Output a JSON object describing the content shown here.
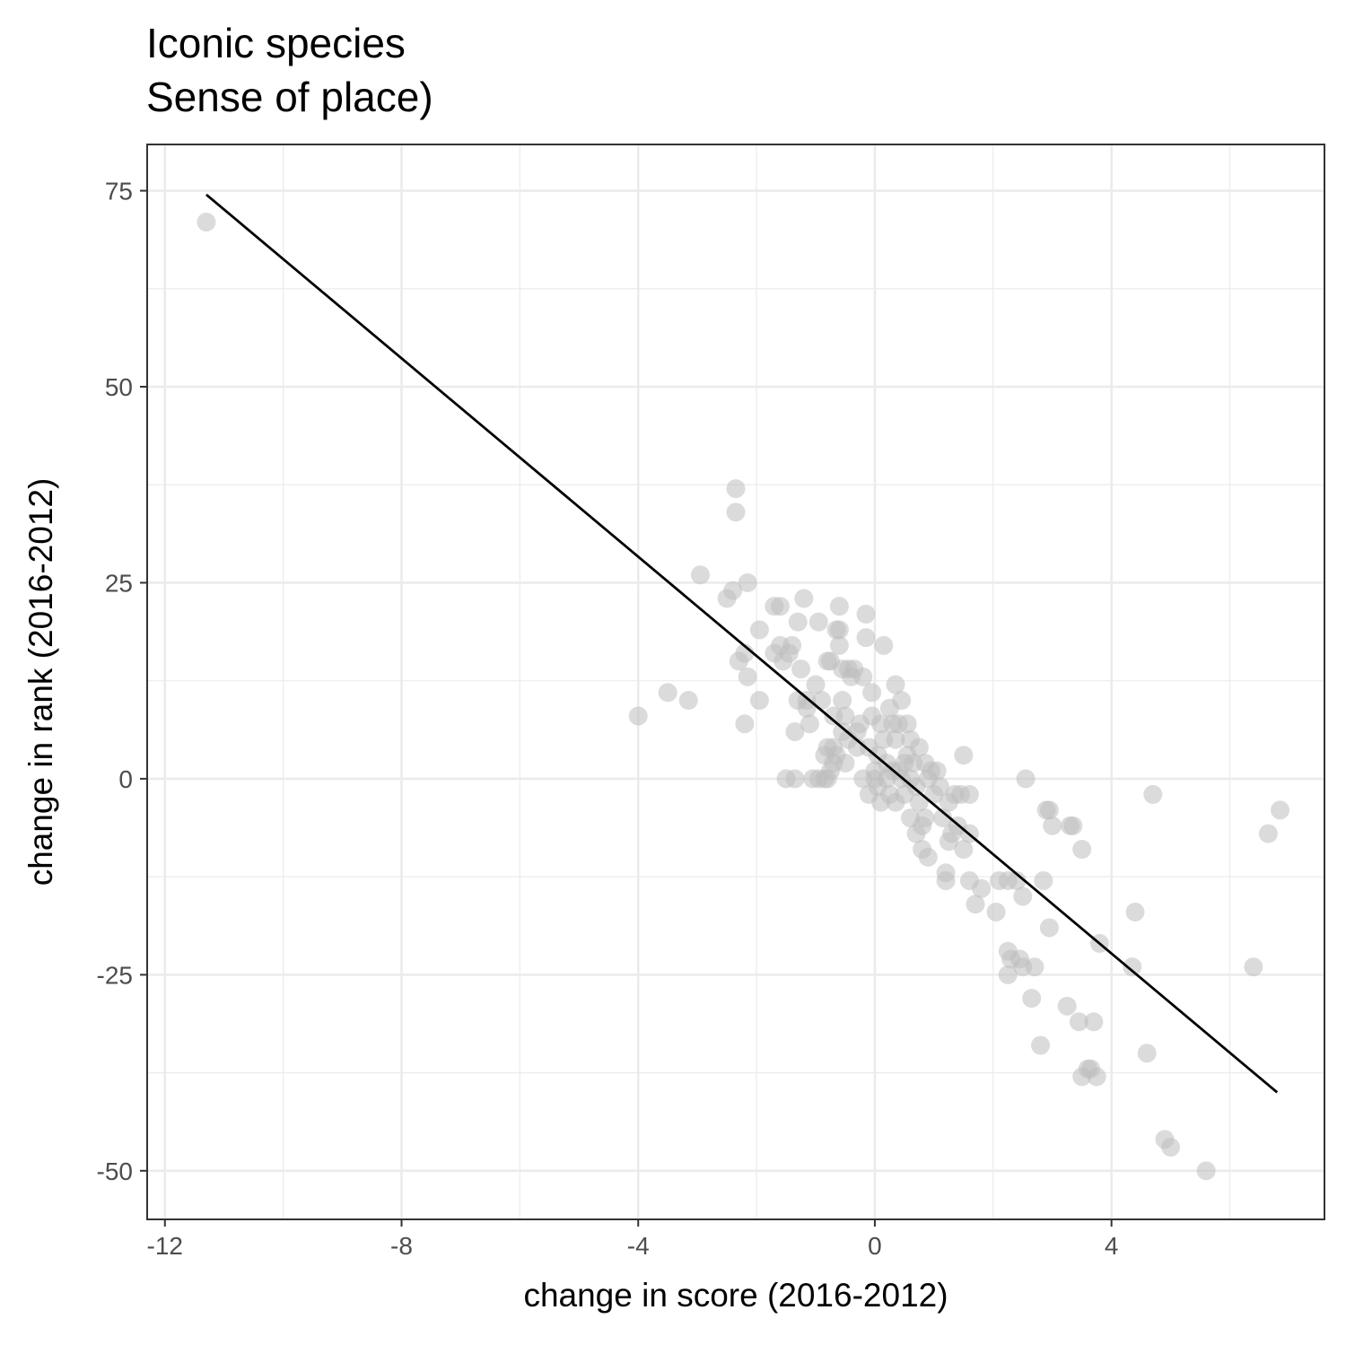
{
  "chart_data": {
    "type": "scatter",
    "title_lines": [
      "Iconic species",
      "Sense of place)"
    ],
    "xlabel": "change in score (2016-2012)",
    "ylabel": "change in rank (2016-2012)",
    "xlim": [
      -12.3,
      7.6
    ],
    "ylim": [
      -56.2,
      80.9
    ],
    "x_ticks": [
      -12,
      -8,
      -4,
      0,
      4
    ],
    "x_tick_labels": [
      "-12",
      "-8",
      "-4",
      "0",
      "4"
    ],
    "y_ticks": [
      75,
      50,
      25,
      0,
      -25,
      -50
    ],
    "y_tick_labels": [
      "75",
      "50",
      "25",
      "0",
      "-25",
      "-50"
    ],
    "x_minor": [
      -10,
      -6,
      -2,
      2,
      6
    ],
    "y_minor": [
      62.5,
      37.5,
      12.5,
      -12.5,
      -37.5
    ],
    "grid": true,
    "point_color": "#bdbdbd",
    "line_color": "#000000",
    "fit_line": {
      "x": [
        -11.3,
        6.8
      ],
      "y": [
        74.5,
        -40
      ]
    },
    "points": [
      [
        -11.3,
        71
      ],
      [
        -4.0,
        8
      ],
      [
        -3.5,
        11
      ],
      [
        -3.15,
        10
      ],
      [
        -2.95,
        26
      ],
      [
        -2.5,
        23
      ],
      [
        -2.4,
        24
      ],
      [
        -2.35,
        37
      ],
      [
        -2.35,
        34
      ],
      [
        -2.3,
        15
      ],
      [
        -2.2,
        16
      ],
      [
        -2.2,
        7
      ],
      [
        -2.15,
        25
      ],
      [
        -2.15,
        13
      ],
      [
        -1.95,
        19
      ],
      [
        -1.95,
        10
      ],
      [
        -1.7,
        22
      ],
      [
        -1.7,
        16
      ],
      [
        -1.6,
        22
      ],
      [
        -1.6,
        17
      ],
      [
        -1.55,
        15
      ],
      [
        -1.5,
        0
      ],
      [
        -1.45,
        16
      ],
      [
        -1.4,
        17
      ],
      [
        -1.35,
        0
      ],
      [
        -1.35,
        6
      ],
      [
        -1.3,
        20
      ],
      [
        -1.3,
        10
      ],
      [
        -1.25,
        14
      ],
      [
        -1.2,
        23
      ],
      [
        -1.15,
        10
      ],
      [
        -1.15,
        9
      ],
      [
        -1.1,
        7
      ],
      [
        -1.05,
        0
      ],
      [
        -1.0,
        12
      ],
      [
        -0.95,
        20
      ],
      [
        -0.95,
        0
      ],
      [
        -0.9,
        10
      ],
      [
        -0.85,
        0
      ],
      [
        -0.85,
        3
      ],
      [
        -0.8,
        15
      ],
      [
        -0.8,
        4
      ],
      [
        -0.8,
        0
      ],
      [
        -0.75,
        15
      ],
      [
        -0.75,
        1
      ],
      [
        -0.7,
        8
      ],
      [
        -0.7,
        4
      ],
      [
        -0.7,
        2
      ],
      [
        -0.65,
        19
      ],
      [
        -0.65,
        3
      ],
      [
        -0.6,
        17
      ],
      [
        -0.6,
        19
      ],
      [
        -0.6,
        22
      ],
      [
        -0.55,
        14
      ],
      [
        -0.55,
        10
      ],
      [
        -0.55,
        6
      ],
      [
        -0.5,
        8
      ],
      [
        -0.5,
        2
      ],
      [
        -0.45,
        14
      ],
      [
        -0.45,
        5
      ],
      [
        -0.4,
        13
      ],
      [
        -0.35,
        14
      ],
      [
        -0.3,
        6
      ],
      [
        -0.3,
        4
      ],
      [
        -0.25,
        7
      ],
      [
        -0.2,
        13
      ],
      [
        -0.2,
        0
      ],
      [
        -0.15,
        21
      ],
      [
        -0.15,
        18
      ],
      [
        -0.1,
        4
      ],
      [
        -0.1,
        -2
      ],
      [
        -0.05,
        11
      ],
      [
        -0.05,
        8
      ],
      [
        0.0,
        1
      ],
      [
        0.0,
        0
      ],
      [
        0.05,
        3
      ],
      [
        0.05,
        -1
      ],
      [
        0.1,
        7
      ],
      [
        0.1,
        -3
      ],
      [
        0.15,
        17
      ],
      [
        0.15,
        5
      ],
      [
        0.2,
        2
      ],
      [
        0.2,
        0
      ],
      [
        0.25,
        -2
      ],
      [
        0.25,
        9
      ],
      [
        0.3,
        7
      ],
      [
        0.3,
        1
      ],
      [
        0.35,
        12
      ],
      [
        0.35,
        5
      ],
      [
        0.35,
        -3
      ],
      [
        0.4,
        7
      ],
      [
        0.4,
        1
      ],
      [
        0.45,
        10
      ],
      [
        0.45,
        0
      ],
      [
        0.5,
        2
      ],
      [
        0.5,
        -2
      ],
      [
        0.55,
        7
      ],
      [
        0.55,
        3
      ],
      [
        0.6,
        5
      ],
      [
        0.6,
        0
      ],
      [
        0.6,
        -5
      ],
      [
        0.65,
        2
      ],
      [
        0.7,
        -1
      ],
      [
        0.7,
        -7
      ],
      [
        0.75,
        4
      ],
      [
        0.75,
        -3
      ],
      [
        0.8,
        -6
      ],
      [
        0.8,
        -9
      ],
      [
        0.85,
        2
      ],
      [
        0.85,
        -5
      ],
      [
        0.9,
        -10
      ],
      [
        0.9,
        0
      ],
      [
        0.95,
        1
      ],
      [
        1.0,
        -2
      ],
      [
        1.05,
        1
      ],
      [
        1.1,
        -1
      ],
      [
        1.15,
        -5
      ],
      [
        1.2,
        -12
      ],
      [
        1.2,
        -13
      ],
      [
        1.25,
        -8
      ],
      [
        1.25,
        -3
      ],
      [
        1.3,
        -7
      ],
      [
        1.35,
        -2
      ],
      [
        1.4,
        -6
      ],
      [
        1.45,
        -2
      ],
      [
        1.5,
        3
      ],
      [
        1.5,
        -9
      ],
      [
        1.6,
        -2
      ],
      [
        1.6,
        -7
      ],
      [
        1.6,
        -13
      ],
      [
        1.7,
        -16
      ],
      [
        1.8,
        -14
      ],
      [
        2.05,
        -17
      ],
      [
        2.1,
        -13
      ],
      [
        2.25,
        -13
      ],
      [
        2.25,
        -22
      ],
      [
        2.25,
        -25
      ],
      [
        2.3,
        -23
      ],
      [
        2.4,
        -13
      ],
      [
        2.45,
        -23
      ],
      [
        2.5,
        -24
      ],
      [
        2.5,
        -15
      ],
      [
        2.55,
        0
      ],
      [
        2.65,
        -28
      ],
      [
        2.7,
        -24
      ],
      [
        2.8,
        -34
      ],
      [
        2.85,
        -13
      ],
      [
        2.9,
        -4
      ],
      [
        2.95,
        -4
      ],
      [
        2.95,
        -19
      ],
      [
        3.0,
        -6
      ],
      [
        3.25,
        -29
      ],
      [
        3.3,
        -6
      ],
      [
        3.35,
        -6
      ],
      [
        3.45,
        -31
      ],
      [
        3.5,
        -9
      ],
      [
        3.5,
        -38
      ],
      [
        3.6,
        -37
      ],
      [
        3.65,
        -37
      ],
      [
        3.7,
        -31
      ],
      [
        3.75,
        -38
      ],
      [
        3.8,
        -21
      ],
      [
        4.35,
        -24
      ],
      [
        4.4,
        -17
      ],
      [
        4.6,
        -35
      ],
      [
        4.7,
        -2
      ],
      [
        4.9,
        -46
      ],
      [
        5.0,
        -47
      ],
      [
        5.6,
        -50
      ],
      [
        6.4,
        -24
      ],
      [
        6.65,
        -7
      ],
      [
        6.85,
        -4
      ]
    ]
  }
}
